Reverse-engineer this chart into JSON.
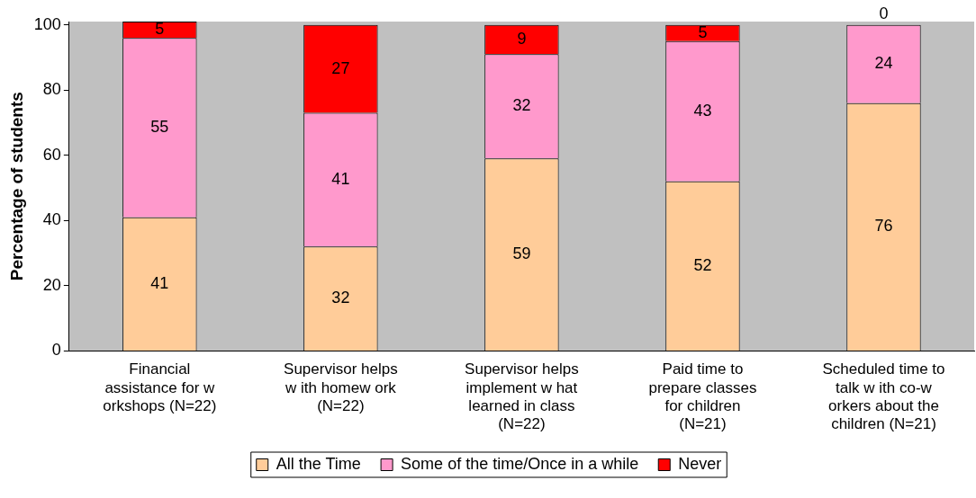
{
  "chart_data": {
    "type": "bar",
    "stacked": true,
    "ylabel": "Percentage of students",
    "categories": [
      "Financial assistance for w orkshops (N=22)",
      "Supervisor helps w ith homew ork (N=22)",
      "Supervisor helps implement w hat learned in class (N=22)",
      "Paid time to prepare classes for children (N=21)",
      "Scheduled time to talk w ith co-w orkers about the children (N=21)"
    ],
    "series": [
      {
        "name": "All the Time",
        "color": "#ffcc99",
        "values": [
          41,
          32,
          59,
          52,
          76
        ]
      },
      {
        "name": "Some of the time/Once in a while",
        "color": "#ff99cc",
        "values": [
          55,
          41,
          32,
          43,
          24
        ]
      },
      {
        "name": "Never",
        "color": "#ff0000",
        "values": [
          5,
          27,
          9,
          5,
          0
        ]
      }
    ],
    "ylim": [
      0,
      101
    ],
    "yticks": [
      0,
      20,
      40,
      60,
      80,
      100
    ],
    "grid": false,
    "legend": "bottom",
    "data_labels": true
  }
}
